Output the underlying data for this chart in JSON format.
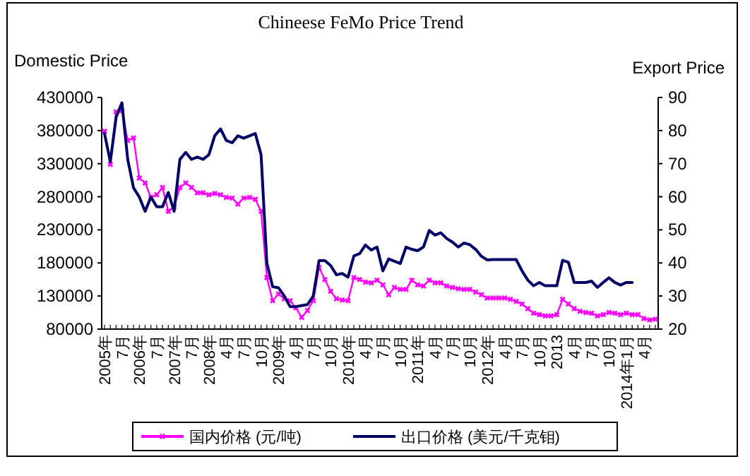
{
  "chart_data": {
    "type": "line",
    "title": "Chineese FeMo Price Trend",
    "ylabel": "Domestic Price",
    "y2label": "Export Price",
    "categories": [
      "2005年",
      null,
      null,
      "7月",
      null,
      null,
      "2006年",
      null,
      null,
      "7月",
      null,
      null,
      "2007年",
      null,
      null,
      "7月",
      null,
      null,
      "2008年",
      null,
      null,
      "4月",
      null,
      null,
      "7月",
      null,
      null,
      "10月",
      null,
      null,
      "2009年",
      null,
      null,
      "4月",
      null,
      null,
      "7月",
      null,
      null,
      "10月",
      null,
      null,
      "2010年",
      null,
      null,
      "4月",
      null,
      null,
      "7月",
      null,
      null,
      "10月",
      null,
      null,
      "2011年",
      null,
      null,
      "4月",
      null,
      null,
      "7月",
      null,
      null,
      "10月",
      null,
      null,
      "2012年",
      null,
      null,
      "4月",
      null,
      null,
      "7月",
      null,
      null,
      "10月",
      null,
      null,
      "2013",
      null,
      null,
      "4月",
      null,
      null,
      "7月",
      null,
      null,
      "10月",
      null,
      null,
      "2014年1月",
      null,
      null,
      "4月",
      null,
      null
    ],
    "series": [
      {
        "name": "国内价格 (元/吨)",
        "color": "#ff00ff",
        "marker": "cross",
        "values": [
          379000,
          329000,
          408000,
          410000,
          365000,
          369000,
          308000,
          301000,
          279000,
          283000,
          294000,
          258000,
          265000,
          294000,
          301000,
          294000,
          286000,
          286000,
          283000,
          285000,
          283000,
          279000,
          278000,
          269000,
          278000,
          279000,
          276000,
          258000,
          158000,
          123000,
          133000,
          126000,
          123000,
          112000,
          98000,
          108000,
          123000,
          173000,
          155000,
          137000,
          126000,
          124000,
          123000,
          158000,
          155000,
          151000,
          150000,
          154000,
          147000,
          132000,
          143000,
          140000,
          140000,
          154000,
          147000,
          145000,
          154000,
          150000,
          150000,
          145000,
          143000,
          141000,
          140000,
          140000,
          136000,
          132000,
          127000,
          127000,
          127000,
          127000,
          125000,
          122000,
          118000,
          111000,
          104000,
          102000,
          100000,
          100000,
          102000,
          125000,
          118000,
          111000,
          107000,
          105000,
          104000,
          100000,
          102000,
          105000,
          104000,
          102000,
          104000,
          102000,
          102000,
          96000,
          94000,
          95000
        ]
      },
      {
        "name": "出口价格 (美元/千克钼)",
        "color": "#000066",
        "axis": "y2",
        "marker": "none",
        "values": [
          79.1,
          70.6,
          84,
          88.4,
          71.3,
          62.7,
          59.9,
          55.6,
          59.9,
          57,
          57,
          61.3,
          55.6,
          71.3,
          73.4,
          71.3,
          72,
          71.3,
          72.7,
          78.4,
          80.5,
          77,
          76.3,
          78.4,
          77.7,
          78.4,
          79.1,
          72.7,
          39.9,
          32.8,
          32.5,
          30,
          26.8,
          26.8,
          27.1,
          27.4,
          30,
          40.7,
          40.7,
          39.2,
          36.4,
          36.8,
          35.7,
          42.1,
          42.8,
          45.4,
          43.9,
          44.8,
          37.6,
          41.2,
          40.5,
          39.8,
          44.8,
          44.1,
          43.7,
          44.8,
          49.8,
          48.4,
          49.1,
          47.4,
          46.3,
          44.8,
          46,
          45.5,
          44.1,
          42,
          40.9,
          41,
          41,
          41,
          41,
          41,
          37.6,
          34.8,
          33.1,
          34.1,
          33.1,
          33.1,
          33.1,
          40.8,
          40.2,
          34.1,
          34.1,
          34.1,
          34.5,
          32.6,
          34.1,
          35.5,
          34.1,
          33.3,
          34.1,
          34.1,
          null,
          null,
          null,
          null
        ]
      }
    ],
    "ylim": [
      80000,
      430000
    ],
    "yticks": [
      80000,
      130000,
      180000,
      230000,
      280000,
      330000,
      380000,
      430000
    ],
    "y2lim": [
      20,
      90
    ],
    "y2ticks": [
      20,
      30,
      40,
      50,
      60,
      70,
      80,
      90
    ],
    "grid": false,
    "legend": "bottom",
    "line_style": "solid"
  }
}
